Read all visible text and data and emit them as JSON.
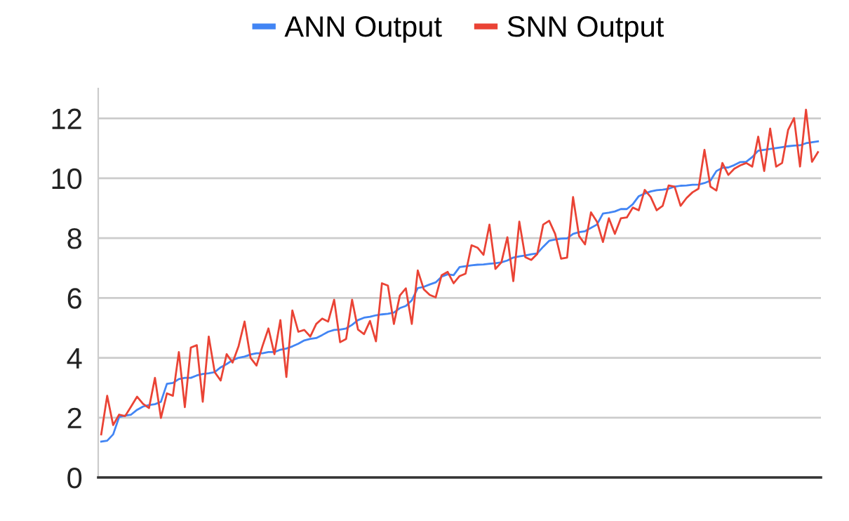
{
  "chart_data": {
    "type": "line",
    "categories": [
      null,
      null,
      null,
      null,
      null,
      null,
      null,
      null,
      null,
      null,
      null,
      null,
      null,
      null,
      null,
      null,
      null,
      null,
      null,
      null,
      null,
      null,
      null,
      null,
      null,
      null,
      null,
      null,
      null,
      null,
      null,
      null,
      null,
      null,
      null,
      null,
      null,
      null,
      null,
      null,
      null,
      null,
      null,
      null,
      null,
      null,
      null,
      null,
      null,
      null,
      null,
      null,
      null,
      null,
      null,
      null,
      null,
      null,
      null,
      null,
      null,
      null,
      null,
      null,
      null,
      null,
      null,
      null,
      null,
      null,
      null,
      null,
      null,
      null,
      null,
      null,
      null,
      null,
      null,
      null,
      null,
      null,
      null,
      null,
      null,
      null,
      null,
      null,
      null,
      null,
      null,
      null,
      null,
      null,
      null,
      null,
      null,
      null,
      null,
      null,
      null,
      null,
      null,
      null,
      null,
      null,
      null,
      null,
      null,
      null,
      null,
      null,
      null,
      null,
      null,
      null,
      null,
      null,
      null,
      null,
      null
    ],
    "series": [
      {
        "name": "ANN Output",
        "color": "#4285f4",
        "values": [
          1.2,
          1.23,
          1.44,
          2.02,
          2.07,
          2.1,
          2.26,
          2.37,
          2.42,
          2.45,
          2.53,
          3.13,
          3.16,
          3.29,
          3.33,
          3.33,
          3.41,
          3.46,
          3.48,
          3.52,
          3.68,
          3.79,
          3.92,
          4.0,
          4.04,
          4.11,
          4.15,
          4.15,
          4.19,
          4.19,
          4.27,
          4.31,
          4.38,
          4.47,
          4.58,
          4.63,
          4.66,
          4.76,
          4.87,
          4.93,
          4.94,
          4.98,
          5.1,
          5.26,
          5.34,
          5.37,
          5.42,
          5.45,
          5.47,
          5.51,
          5.66,
          5.73,
          5.92,
          6.33,
          6.37,
          6.45,
          6.52,
          6.71,
          6.79,
          6.76,
          7.03,
          7.06,
          7.09,
          7.11,
          7.12,
          7.14,
          7.16,
          7.19,
          7.25,
          7.35,
          7.39,
          7.42,
          7.46,
          7.49,
          7.71,
          7.91,
          7.95,
          7.98,
          7.99,
          8.14,
          8.2,
          8.23,
          8.34,
          8.45,
          8.82,
          8.85,
          8.89,
          8.97,
          8.97,
          9.13,
          9.4,
          9.49,
          9.56,
          9.6,
          9.62,
          9.65,
          9.72,
          9.75,
          9.76,
          9.78,
          9.79,
          9.84,
          9.92,
          10.24,
          10.35,
          10.36,
          10.44,
          10.54,
          10.55,
          10.71,
          10.92,
          10.95,
          10.98,
          11.01,
          11.04,
          11.07,
          11.09,
          11.1,
          11.17,
          11.2,
          11.23
        ]
      },
      {
        "name": "SNN Output",
        "color": "#ea4335",
        "values": [
          1.44,
          2.73,
          1.75,
          2.1,
          2.05,
          2.37,
          2.7,
          2.46,
          2.32,
          3.33,
          1.99,
          2.81,
          2.73,
          4.19,
          2.35,
          4.34,
          4.42,
          2.53,
          4.71,
          3.52,
          3.24,
          4.12,
          3.84,
          4.39,
          5.21,
          4.0,
          3.74,
          4.39,
          4.98,
          4.12,
          5.26,
          3.36,
          5.58,
          4.87,
          4.93,
          4.71,
          5.13,
          5.31,
          5.21,
          5.94,
          4.52,
          4.63,
          5.94,
          4.94,
          4.79,
          5.23,
          4.55,
          6.49,
          6.41,
          5.13,
          6.08,
          6.32,
          5.13,
          6.92,
          6.29,
          6.1,
          6.02,
          6.76,
          6.87,
          6.49,
          6.73,
          6.81,
          7.76,
          7.68,
          7.44,
          8.45,
          6.97,
          7.19,
          8.03,
          6.56,
          8.55,
          7.36,
          7.27,
          7.47,
          8.45,
          8.58,
          8.14,
          7.31,
          7.35,
          9.37,
          8.07,
          7.79,
          8.86,
          8.55,
          7.87,
          8.66,
          8.14,
          8.66,
          8.69,
          9.02,
          8.93,
          9.61,
          9.37,
          8.93,
          9.08,
          9.76,
          9.72,
          9.08,
          9.34,
          9.53,
          9.65,
          10.95,
          9.72,
          9.59,
          10.51,
          10.11,
          10.32,
          10.43,
          10.51,
          10.39,
          11.39,
          10.24,
          11.66,
          10.39,
          10.51,
          11.61,
          12.01,
          10.39,
          12.29,
          10.55,
          10.87
        ]
      }
    ],
    "ylim": [
      0,
      13
    ],
    "yticks": [
      0,
      2,
      4,
      6,
      8,
      10,
      12
    ],
    "grid": "y",
    "legend": "top",
    "marker": "none",
    "line_style": "solid"
  }
}
